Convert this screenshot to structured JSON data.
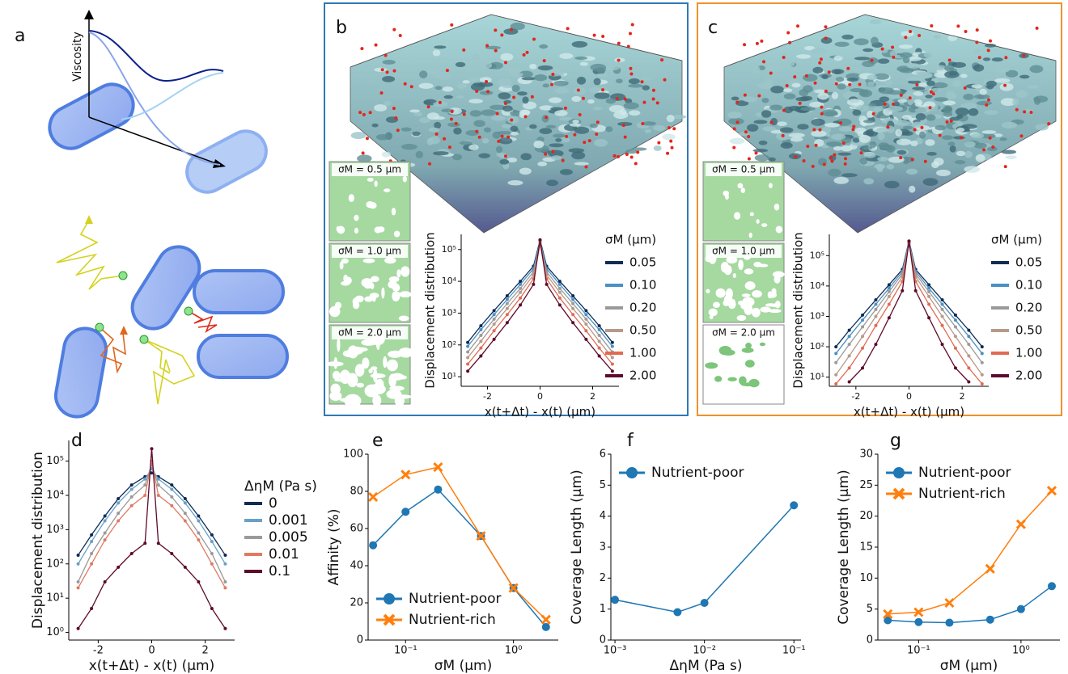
{
  "panel_labels": {
    "a": "a",
    "b": "b",
    "c": "c",
    "d": "d",
    "e": "e",
    "f": "f",
    "g": "g"
  },
  "illustration": {
    "axis_label": "Viscosity"
  },
  "insets": {
    "b": [
      "σM = 0.5 μm",
      "σM = 1.0 μm",
      "σM = 2.0 μm"
    ],
    "c": [
      "σM = 0.5 μm",
      "σM = 1.0 μm",
      "σM = 2.0 μm"
    ]
  },
  "chart_data": [
    {
      "type": "line",
      "panel": "b",
      "xlabel": "x(t+Δt) - x(t) (μm)",
      "ylabel": "Displacement distribution",
      "ylog": true,
      "xlim": [
        -3,
        3
      ],
      "xticks": [
        -2,
        0,
        2
      ],
      "ylim": [
        5,
        300000
      ],
      "yticks": [
        {
          "value": 10,
          "label": "10¹"
        },
        {
          "value": 100,
          "label": "10²"
        },
        {
          "value": 1000,
          "label": "10³"
        },
        {
          "value": 10000,
          "label": "10⁴"
        },
        {
          "value": 100000,
          "label": "10⁵"
        }
      ],
      "legend_title": "σM (μm)",
      "x": [
        -2.75,
        -2.25,
        -1.75,
        -1.25,
        -0.75,
        -0.25,
        0,
        0.25,
        0.75,
        1.25,
        1.75,
        2.25,
        2.75
      ],
      "series": [
        {
          "name": "0.05",
          "color": "#0d2c54",
          "values": [
            120,
            400,
            1200,
            3500,
            10000,
            30000,
            200000,
            30000,
            10000,
            3500,
            1200,
            400,
            120
          ]
        },
        {
          "name": "0.10",
          "color": "#4a90c4",
          "values": [
            90,
            300,
            900,
            2700,
            8000,
            25000,
            180000,
            25000,
            8000,
            2700,
            900,
            300,
            90
          ]
        },
        {
          "name": "0.20",
          "color": "#9a9a9a",
          "values": [
            60,
            200,
            650,
            2000,
            6000,
            20000,
            170000,
            20000,
            6000,
            2000,
            650,
            200,
            60
          ]
        },
        {
          "name": "0.50",
          "color": "#b8998a",
          "values": [
            40,
            130,
            450,
            1400,
            4500,
            16000,
            160000,
            16000,
            4500,
            1400,
            450,
            130,
            40
          ]
        },
        {
          "name": "1.00",
          "color": "#e06a52",
          "values": [
            25,
            80,
            280,
            900,
            3000,
            12000,
            150000,
            12000,
            3000,
            900,
            280,
            80,
            25
          ]
        },
        {
          "name": "2.00",
          "color": "#5e0a2a",
          "values": [
            15,
            45,
            150,
            500,
            1800,
            8000,
            200000,
            8000,
            1800,
            500,
            150,
            45,
            15
          ]
        }
      ]
    },
    {
      "type": "line",
      "panel": "c",
      "xlabel": "x(t+Δt) - x(t) (μm)",
      "ylabel": "Displacement distribution",
      "ylog": true,
      "xlim": [
        -3,
        3
      ],
      "xticks": [
        -2,
        0,
        2
      ],
      "ylim": [
        5,
        500000
      ],
      "yticks": [
        {
          "value": 10,
          "label": "10¹"
        },
        {
          "value": 100,
          "label": "10²"
        },
        {
          "value": 1000,
          "label": "10³"
        },
        {
          "value": 10000,
          "label": "10⁴"
        },
        {
          "value": 100000,
          "label": "10⁵"
        }
      ],
      "legend_title": "σM (μm)",
      "x": [
        -2.75,
        -2.25,
        -1.75,
        -1.25,
        -0.75,
        -0.25,
        0,
        0.25,
        0.75,
        1.25,
        1.75,
        2.25,
        2.75
      ],
      "series": [
        {
          "name": "0.05",
          "color": "#0d2c54",
          "values": [
            100,
            350,
            1100,
            3500,
            11000,
            35000,
            300000,
            35000,
            11000,
            3500,
            1100,
            350,
            100
          ]
        },
        {
          "name": "0.10",
          "color": "#4a90c4",
          "values": [
            60,
            220,
            750,
            2500,
            8500,
            30000,
            280000,
            30000,
            8500,
            2500,
            750,
            220,
            60
          ]
        },
        {
          "name": "0.20",
          "color": "#9a9a9a",
          "values": [
            30,
            120,
            450,
            1700,
            6500,
            25000,
            260000,
            25000,
            6500,
            1700,
            450,
            120,
            30
          ]
        },
        {
          "name": "0.50",
          "color": "#b8998a",
          "values": [
            12,
            50,
            220,
            1000,
            4500,
            20000,
            250000,
            20000,
            4500,
            1000,
            220,
            50,
            12
          ]
        },
        {
          "name": "1.00",
          "color": "#e06a52",
          "values": [
            6,
            20,
            90,
            500,
            2500,
            14000,
            250000,
            14000,
            2500,
            500,
            90,
            20,
            6
          ]
        },
        {
          "name": "2.00",
          "color": "#5e0a2a",
          "values": [
            null,
            7,
            20,
            120,
            900,
            7000,
            300000,
            7000,
            900,
            120,
            20,
            7,
            null
          ]
        }
      ]
    },
    {
      "type": "line",
      "panel": "d",
      "xlabel": "x(t+Δt) - x(t) (μm)",
      "ylabel": "Displacement distribution",
      "ylog": true,
      "xlim": [
        -3.1,
        3.1
      ],
      "xticks": [
        -2,
        0,
        2
      ],
      "ylim": [
        0.6,
        400000
      ],
      "yticks": [
        {
          "value": 1,
          "label": "10⁰"
        },
        {
          "value": 10,
          "label": "10¹"
        },
        {
          "value": 100,
          "label": "10²"
        },
        {
          "value": 1000,
          "label": "10³"
        },
        {
          "value": 10000,
          "label": "10⁴"
        },
        {
          "value": 100000,
          "label": "10⁵"
        }
      ],
      "legend_title": "ΔηM (Pa s)",
      "x": [
        -2.75,
        -2.25,
        -1.75,
        -1.25,
        -0.75,
        -0.25,
        0,
        0.25,
        0.75,
        1.25,
        1.75,
        2.25,
        2.75
      ],
      "series": [
        {
          "name": "0",
          "color": "#0d2c54",
          "values": [
            180,
            700,
            2500,
            8000,
            20000,
            35000,
            45000,
            35000,
            20000,
            8000,
            2500,
            700,
            180
          ]
        },
        {
          "name": "0.001",
          "color": "#6aa0c8",
          "values": [
            100,
            450,
            1800,
            6000,
            15000,
            30000,
            60000,
            30000,
            15000,
            6000,
            1800,
            450,
            100
          ]
        },
        {
          "name": "0.005",
          "color": "#9a9a9a",
          "values": [
            30,
            200,
            800,
            3000,
            9000,
            20000,
            80000,
            20000,
            9000,
            3000,
            800,
            200,
            30
          ]
        },
        {
          "name": "0.01",
          "color": "#e07a62",
          "values": [
            20,
            100,
            500,
            1800,
            5000,
            10000,
            100000,
            10000,
            5000,
            1800,
            500,
            100,
            20
          ]
        },
        {
          "name": "0.1",
          "color": "#5e0a2a",
          "values": [
            1.3,
            5,
            30,
            80,
            200,
            400,
            230000,
            400,
            200,
            80,
            30,
            5,
            1.3
          ]
        }
      ]
    },
    {
      "type": "line",
      "panel": "e",
      "xlabel": "σM (μm)",
      "ylabel": "Affinity (%)",
      "xlog": true,
      "xlim": [
        0.045,
        2.6
      ],
      "xticks": [
        {
          "value": 0.1,
          "label": "10⁻¹"
        },
        {
          "value": 1,
          "label": "10⁰"
        }
      ],
      "ylim": [
        0,
        100
      ],
      "yticks": [
        0,
        20,
        40,
        60,
        80,
        100
      ],
      "legend_loc": "lower left",
      "x": [
        0.05,
        0.1,
        0.2,
        0.5,
        1,
        2
      ],
      "series": [
        {
          "name": "Nutrient-poor",
          "color": "#1f77b4",
          "marker": "circle",
          "values": [
            51,
            69,
            81,
            56,
            28,
            7
          ]
        },
        {
          "name": "Nutrient-rich",
          "color": "#ff7f0e",
          "marker": "x",
          "values": [
            77,
            89,
            93,
            56,
            28,
            11
          ]
        }
      ]
    },
    {
      "type": "line",
      "panel": "f",
      "xlabel": "ΔηM (Pa s)",
      "ylabel": "Coverage Length (μm)",
      "xlog": true,
      "xlim": [
        0.0009,
        0.12
      ],
      "xticks": [
        {
          "value": 0.001,
          "label": "10⁻³"
        },
        {
          "value": 0.01,
          "label": "10⁻²"
        },
        {
          "value": 0.1,
          "label": "10⁻¹"
        }
      ],
      "ylim": [
        0,
        6
      ],
      "yticks": [
        0,
        1,
        2,
        3,
        4,
        5,
        6
      ],
      "legend_loc": "upper left",
      "x": [
        0.001,
        0.005,
        0.01,
        0.1
      ],
      "series": [
        {
          "name": "Nutrient-poor",
          "color": "#1f77b4",
          "marker": "circle",
          "values": [
            1.3,
            0.9,
            1.2,
            4.35
          ]
        }
      ]
    },
    {
      "type": "line",
      "panel": "g",
      "xlabel": "σM (μm)",
      "ylabel": "Coverage Length (μm)",
      "xlog": true,
      "xlim": [
        0.04,
        2.4
      ],
      "xticks": [
        {
          "value": 0.1,
          "label": "10⁻¹"
        },
        {
          "value": 1,
          "label": "10⁰"
        }
      ],
      "ylim": [
        0,
        30
      ],
      "yticks": [
        0,
        5,
        10,
        15,
        20,
        25,
        30
      ],
      "legend_loc": "upper left",
      "x": [
        0.05,
        0.1,
        0.2,
        0.5,
        1,
        2
      ],
      "series": [
        {
          "name": "Nutrient-poor",
          "color": "#1f77b4",
          "marker": "circle",
          "values": [
            3.2,
            2.9,
            2.8,
            3.3,
            5,
            8.7
          ]
        },
        {
          "name": "Nutrient-rich",
          "color": "#ff7f0e",
          "marker": "x",
          "values": [
            4.2,
            4.5,
            6,
            11.5,
            18.7,
            24.1
          ]
        }
      ]
    }
  ]
}
